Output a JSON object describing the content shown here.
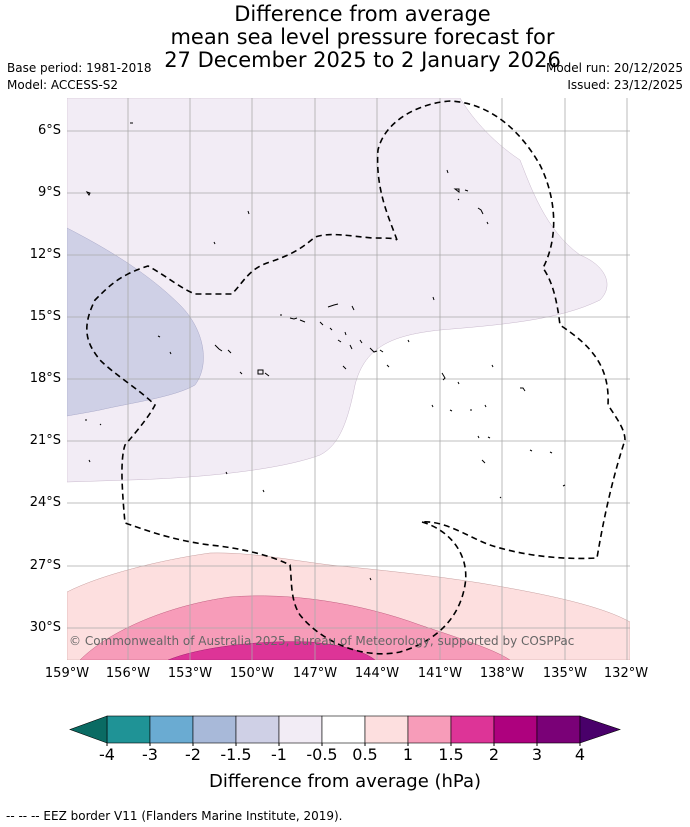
{
  "title": {
    "line1": "Difference from average",
    "line2": "mean sea level pressure forecast for",
    "line3": "27 December 2025 to 2 January 2026"
  },
  "meta": {
    "base_period": "Base period: 1981-2018",
    "model": "Model: ACCESS-S2",
    "model_run": "Model run: 20/12/2025",
    "issued": "Issued: 23/12/2025"
  },
  "latitudes": [
    "6°S",
    "9°S",
    "12°S",
    "15°S",
    "18°S",
    "21°S",
    "24°S",
    "27°S",
    "30°S"
  ],
  "longitudes": [
    "159°W",
    "156°W",
    "153°W",
    "150°W",
    "147°W",
    "144°W",
    "141°W",
    "138°W",
    "135°W",
    "132°W"
  ],
  "copyright": "© Commonwealth of Australia 2025, Bureau of Meteorology, supported by COSPPac",
  "colorbar": {
    "labels": [
      "-4",
      "-3",
      "-2",
      "-1.5",
      "-1",
      "-0.5",
      "0.5",
      "1",
      "1.5",
      "2",
      "3",
      "4"
    ],
    "colors": [
      "#1f9396",
      "#6aabd2",
      "#a8b9d9",
      "#cfd0e6",
      "#f2ecf5",
      "#ffffff",
      "#fddfdf",
      "#f79cb9",
      "#dd3497",
      "#ae017e",
      "#7a0177"
    ],
    "under_color": "#0a6b63",
    "over_color": "#49006a",
    "title": "Difference from average (hPa)"
  },
  "footer": "--  --  -- EEZ border V11 (Flanders Marine Institute, 2019)."
}
